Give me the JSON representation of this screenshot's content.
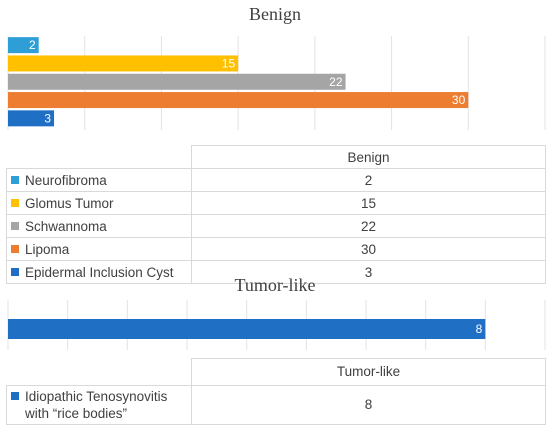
{
  "chart_data": [
    {
      "type": "bar",
      "orientation": "horizontal",
      "title": "Benign",
      "categories": [
        "Neurofibroma",
        "Glomus Tumor",
        "Schwannoma",
        "Lipoma",
        "Epidermal Inclusion Cyst"
      ],
      "values": [
        2,
        15,
        22,
        30,
        3
      ],
      "colors": [
        "#2e9fd6",
        "#ffc000",
        "#a5a5a5",
        "#ed7d31",
        "#1f6fc5"
      ],
      "xlim": [
        0,
        35
      ],
      "grid": true,
      "table_header": "Benign"
    },
    {
      "type": "bar",
      "orientation": "horizontal",
      "title": "Tumor-like",
      "categories": [
        "Idiopathic Tenosynovitis with “rice bodies”"
      ],
      "category_lines": [
        "Idiopathic Tenosynovitis",
        "with “rice bodies”"
      ],
      "values": [
        8
      ],
      "colors": [
        "#1f6fc5"
      ],
      "xlim": [
        0,
        9
      ],
      "grid": true,
      "table_header": "Tumor-like"
    }
  ]
}
